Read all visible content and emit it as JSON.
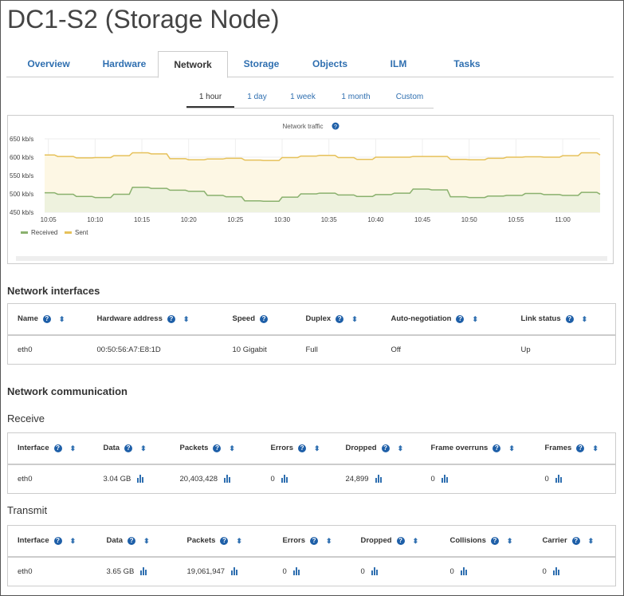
{
  "page_title": "DC1-S2 (Storage Node)",
  "tabs": [
    {
      "label": "Overview"
    },
    {
      "label": "Hardware"
    },
    {
      "label": "Network",
      "active": true
    },
    {
      "label": "Storage"
    },
    {
      "label": "Objects"
    },
    {
      "label": "ILM"
    },
    {
      "label": "Tasks"
    }
  ],
  "time_ranges": [
    {
      "label": "1 hour",
      "active": true
    },
    {
      "label": "1 day"
    },
    {
      "label": "1 week"
    },
    {
      "label": "1 month"
    },
    {
      "label": "Custom"
    }
  ],
  "chart_data": {
    "type": "area",
    "title": "Network traffic",
    "ylim": [
      450,
      650
    ],
    "yticks": [
      "650 kb/s",
      "600 kb/s",
      "550 kb/s",
      "500 kb/s",
      "450 kb/s"
    ],
    "ytick_values": [
      650,
      600,
      550,
      500,
      450
    ],
    "xticks": [
      "10:05",
      "10:10",
      "10:15",
      "10:20",
      "10:25",
      "10:30",
      "10:35",
      "10:40",
      "10:45",
      "10:50",
      "10:55",
      "11:00"
    ],
    "x": [
      "10:04",
      "10:06",
      "10:08",
      "10:10",
      "10:12",
      "10:14",
      "10:16",
      "10:18",
      "10:20",
      "10:22",
      "10:24",
      "10:26",
      "10:28",
      "10:30",
      "10:32",
      "10:34",
      "10:36",
      "10:38",
      "10:40",
      "10:42",
      "10:44",
      "10:46",
      "10:48",
      "10:50",
      "10:52",
      "10:54",
      "10:56",
      "10:58",
      "11:00",
      "11:02",
      "11:04"
    ],
    "series": [
      {
        "name": "Received",
        "color": "#8ab16e",
        "values": [
          503,
          499,
          493,
          490,
          499,
          518,
          515,
          510,
          507,
          496,
          492,
          481,
          480,
          491,
          500,
          502,
          497,
          493,
          498,
          502,
          513,
          511,
          492,
          490,
          494,
          496,
          501,
          498,
          496,
          504,
          499
        ]
      },
      {
        "name": "Sent",
        "color": "#e6c15a",
        "values": [
          606,
          602,
          598,
          599,
          604,
          612,
          609,
          596,
          593,
          595,
          597,
          592,
          591,
          599,
          603,
          605,
          599,
          594,
          600,
          600,
          602,
          602,
          594,
          593,
          597,
          600,
          601,
          600,
          604,
          612,
          606
        ]
      }
    ],
    "grid": true,
    "legend": "bottom-left"
  },
  "interfaces": {
    "title": "Network interfaces",
    "headers": [
      "Name",
      "Hardware address",
      "Speed",
      "Duplex",
      "Auto-negotiation",
      "Link status"
    ],
    "rows": [
      [
        "eth0",
        "00:50:56:A7:E8:1D",
        "10 Gigabit",
        "Full",
        "Off",
        "Up"
      ]
    ]
  },
  "communication": {
    "title": "Network communication",
    "receive": {
      "title": "Receive",
      "headers": [
        "Interface",
        "Data",
        "Packets",
        "Errors",
        "Dropped",
        "Frame overruns",
        "Frames"
      ],
      "row": [
        "eth0",
        "3.04 GB",
        "20,403,428",
        "0",
        "24,899",
        "0",
        "0"
      ]
    },
    "transmit": {
      "title": "Transmit",
      "headers": [
        "Interface",
        "Data",
        "Packets",
        "Errors",
        "Dropped",
        "Collisions",
        "Carrier"
      ],
      "row": [
        "eth0",
        "3.65 GB",
        "19,061,947",
        "0",
        "0",
        "0",
        "0"
      ]
    }
  },
  "help_glyph": "?",
  "sort_glyph": "⬍"
}
